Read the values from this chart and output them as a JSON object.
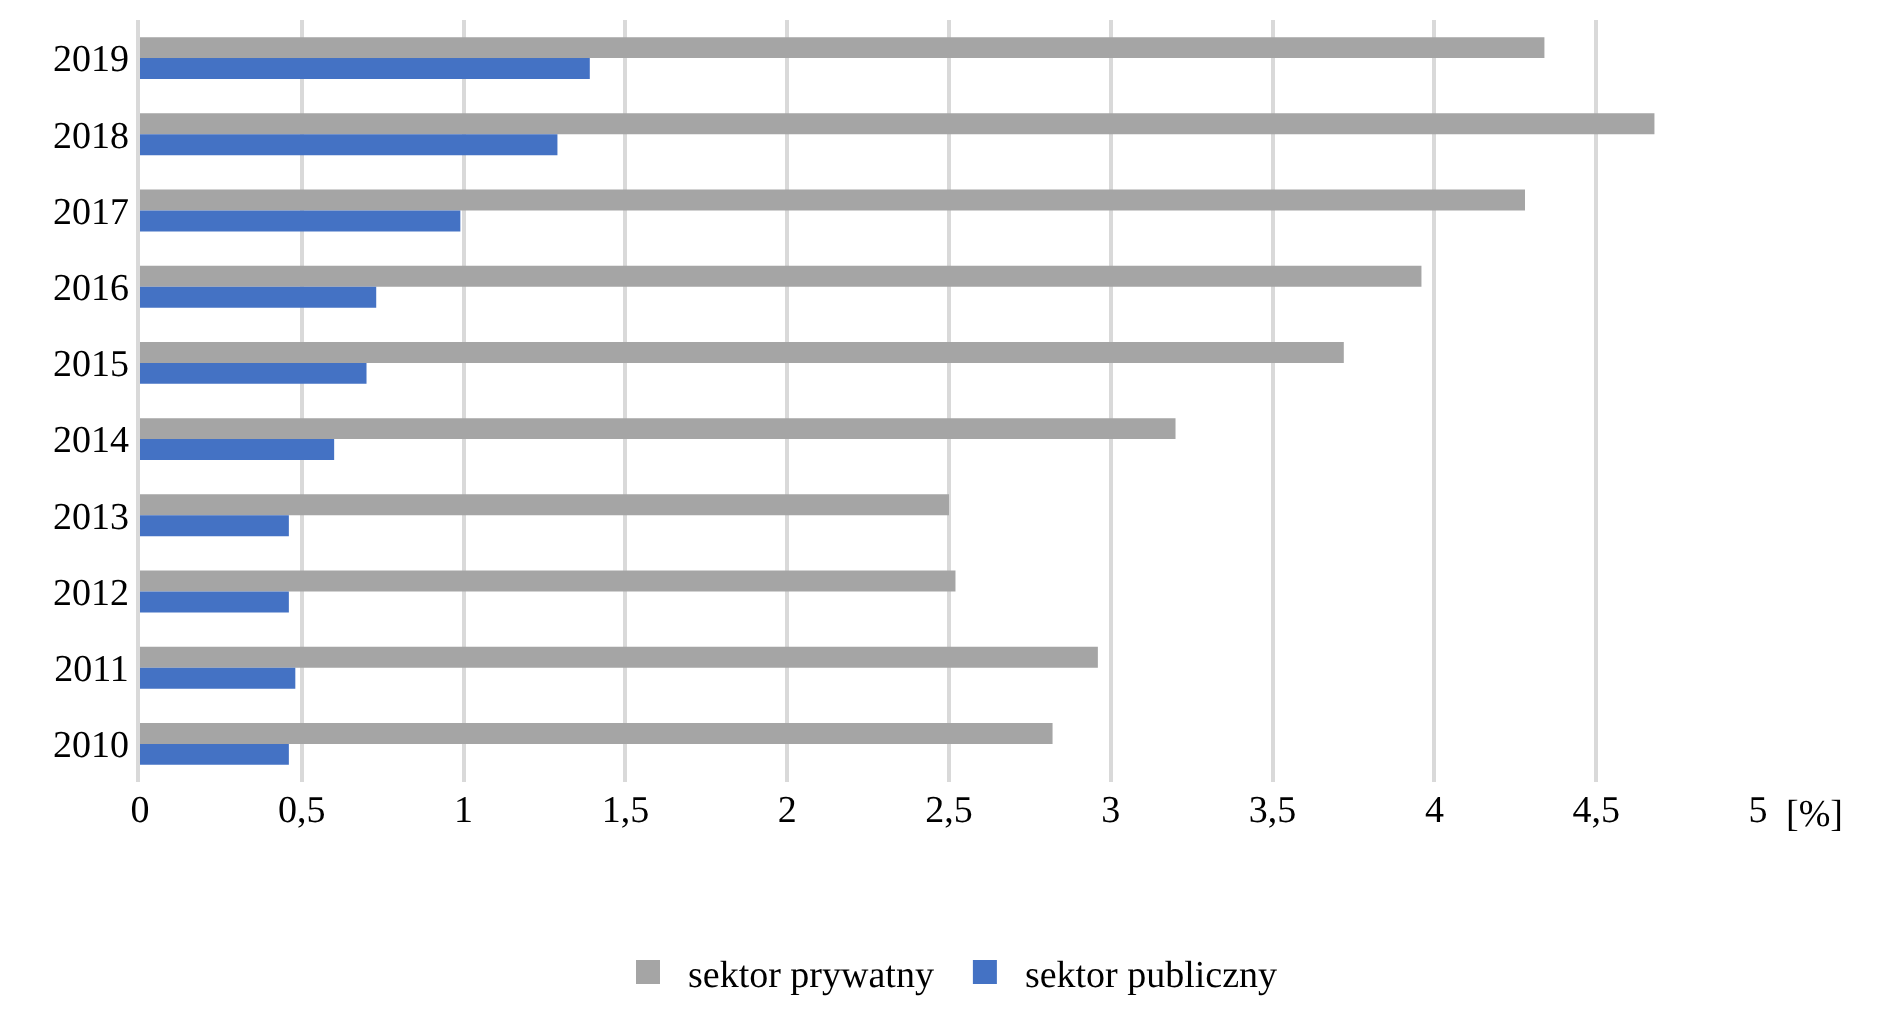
{
  "chart_data": {
    "type": "bar",
    "orientation": "horizontal",
    "xlabel": "[%]",
    "categories": [
      "2019",
      "2018",
      "2017",
      "2016",
      "2015",
      "2014",
      "2013",
      "2012",
      "2011",
      "2010"
    ],
    "series": [
      {
        "name": "sektor prywatny",
        "color": "#a5a5a5",
        "values": [
          4.34,
          4.68,
          4.28,
          3.96,
          3.72,
          3.2,
          2.5,
          2.52,
          2.96,
          2.82
        ]
      },
      {
        "name": "sektor publiczny",
        "color": "#4472c4",
        "values": [
          1.39,
          1.29,
          0.99,
          0.73,
          0.7,
          0.6,
          0.46,
          0.46,
          0.48,
          0.46
        ]
      }
    ],
    "xlim": [
      0,
      5
    ],
    "xticks": [
      0,
      {
        "value": 0.5,
        "label": "0,5"
      },
      1,
      {
        "value": 1.5,
        "label": "1,5"
      },
      2,
      {
        "value": 2.5,
        "label": "2,5"
      },
      3,
      {
        "value": 3.5,
        "label": "3,5"
      },
      4,
      {
        "value": 4.5,
        "label": "4,5"
      },
      5
    ],
    "grid": "x",
    "legend": "bottom"
  }
}
